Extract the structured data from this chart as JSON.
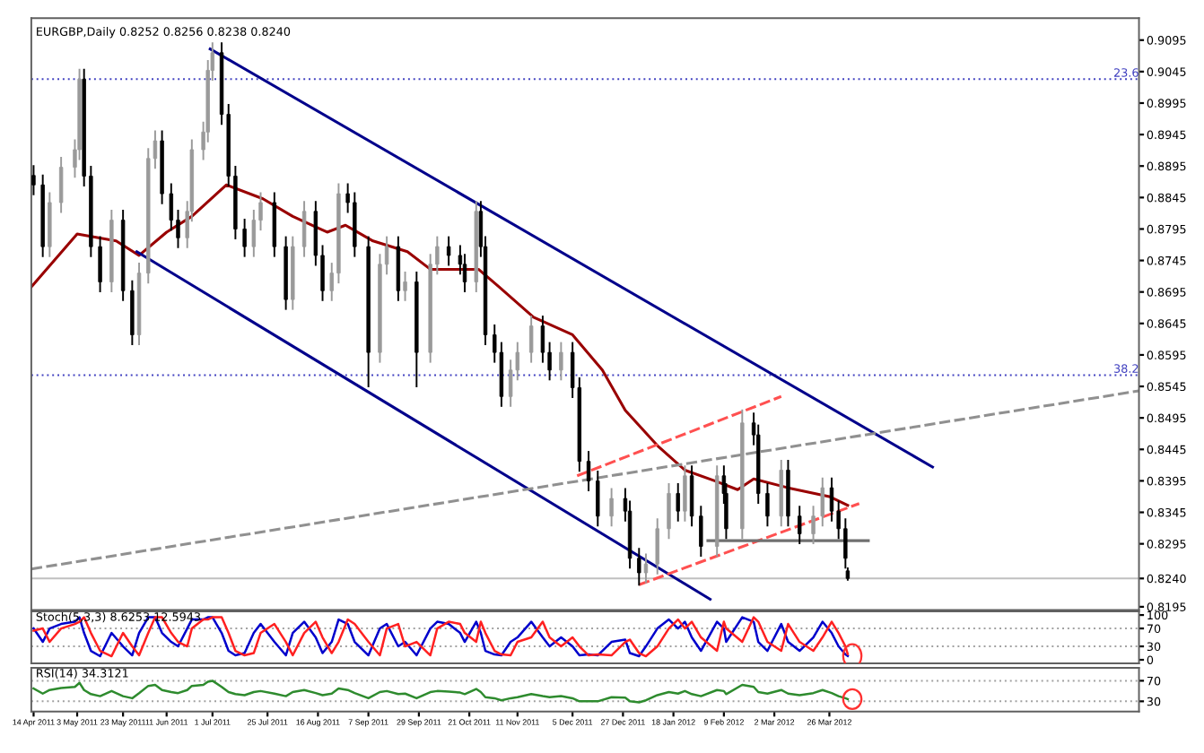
{
  "chart_data": [
    {
      "type": "candlestick",
      "title": "EURGBP,Daily 0.8252 0.8256 0.8238 0.8240",
      "x": [
        "2011-04-14",
        "2011-04-18",
        "2011-04-21",
        "2011-04-26",
        "2011-05-02",
        "2011-05-04",
        "2011-05-06",
        "2011-05-09",
        "2011-05-13",
        "2011-05-18",
        "2011-05-23",
        "2011-05-27",
        "2011-05-30",
        "2011-06-03",
        "2011-06-06",
        "2011-06-09",
        "2011-06-13",
        "2011-06-16",
        "2011-06-20",
        "2011-06-22",
        "2011-06-27",
        "2011-06-29",
        "2011-07-01",
        "2011-07-05",
        "2011-07-08",
        "2011-07-11",
        "2011-07-15",
        "2011-07-19",
        "2011-07-22",
        "2011-07-28",
        "2011-08-02",
        "2011-08-05",
        "2011-08-10",
        "2011-08-15",
        "2011-08-18",
        "2011-08-22",
        "2011-08-25",
        "2011-08-29",
        "2011-09-01",
        "2011-09-07",
        "2011-09-12",
        "2011-09-15",
        "2011-09-20",
        "2011-09-23",
        "2011-09-28",
        "2011-10-04",
        "2011-10-07",
        "2011-10-12",
        "2011-10-17",
        "2011-10-19",
        "2011-10-24",
        "2011-10-26",
        "2011-10-28",
        "2011-11-01",
        "2011-11-04",
        "2011-11-08",
        "2011-11-11",
        "2011-11-17",
        "2011-11-22",
        "2011-11-25",
        "2011-11-30",
        "2011-12-05",
        "2011-12-08",
        "2011-12-12",
        "2011-12-16",
        "2011-12-22",
        "2011-12-28",
        "2011-12-30",
        "2012-01-03",
        "2012-01-06",
        "2012-01-11",
        "2012-01-16",
        "2012-01-20",
        "2012-01-23",
        "2012-01-26",
        "2012-01-30",
        "2012-02-06",
        "2012-02-09",
        "2012-02-10",
        "2012-02-17",
        "2012-02-22",
        "2012-02-24",
        "2012-02-28",
        "2012-03-05",
        "2012-03-08",
        "2012-03-13",
        "2012-03-19",
        "2012-03-23",
        "2012-03-27",
        "2012-03-30",
        "2012-04-02",
        "2012-04-03"
      ],
      "ohlc": [
        [
          0.888,
          0.8895,
          0.885,
          0.8865
        ],
        [
          0.8865,
          0.888,
          0.8752,
          0.8767
        ],
        [
          0.8767,
          0.8852,
          0.8752,
          0.8837
        ],
        [
          0.8837,
          0.8908,
          0.8822,
          0.8893
        ],
        [
          0.8893,
          0.8936,
          0.8878,
          0.8921
        ],
        [
          0.8921,
          0.9048,
          0.8906,
          0.9033
        ],
        [
          0.9033,
          0.9048,
          0.8864,
          0.8879
        ],
        [
          0.8879,
          0.8894,
          0.8752,
          0.8767
        ],
        [
          0.8767,
          0.8782,
          0.8696,
          0.8711
        ],
        [
          0.8711,
          0.8824,
          0.8696,
          0.8809
        ],
        [
          0.8809,
          0.8824,
          0.8682,
          0.8697
        ],
        [
          0.8697,
          0.8712,
          0.8612,
          0.8627
        ],
        [
          0.8627,
          0.874,
          0.8612,
          0.8725
        ],
        [
          0.8725,
          0.8922,
          0.871,
          0.8907
        ],
        [
          0.8907,
          0.895,
          0.8892,
          0.8935
        ],
        [
          0.8935,
          0.895,
          0.8836,
          0.8851
        ],
        [
          0.8851,
          0.8866,
          0.8794,
          0.8809
        ],
        [
          0.8809,
          0.8824,
          0.8766,
          0.8781
        ],
        [
          0.8781,
          0.8838,
          0.8766,
          0.8823
        ],
        [
          0.8823,
          0.8936,
          0.8808,
          0.8921
        ],
        [
          0.8921,
          0.8964,
          0.8906,
          0.8949
        ],
        [
          0.8949,
          0.9062,
          0.8934,
          0.9047
        ],
        [
          0.9047,
          0.909,
          0.9032,
          0.9075
        ],
        [
          0.9075,
          0.909,
          0.8962,
          0.8977
        ],
        [
          0.8977,
          0.8992,
          0.8864,
          0.8879
        ],
        [
          0.8879,
          0.8894,
          0.878,
          0.8795
        ],
        [
          0.8795,
          0.881,
          0.8752,
          0.8767
        ],
        [
          0.8767,
          0.8824,
          0.8752,
          0.8809
        ],
        [
          0.8809,
          0.8852,
          0.8794,
          0.8837
        ],
        [
          0.8837,
          0.8852,
          0.8752,
          0.8767
        ],
        [
          0.8767,
          0.8782,
          0.8668,
          0.8683
        ],
        [
          0.8683,
          0.8782,
          0.8668,
          0.8767
        ],
        [
          0.8767,
          0.8838,
          0.8752,
          0.8823
        ],
        [
          0.8823,
          0.8838,
          0.8738,
          0.8753
        ],
        [
          0.8753,
          0.8768,
          0.8682,
          0.8697
        ],
        [
          0.8697,
          0.874,
          0.8682,
          0.8725
        ],
        [
          0.8725,
          0.8866,
          0.871,
          0.8851
        ],
        [
          0.8851,
          0.8866,
          0.8822,
          0.8837
        ],
        [
          0.8837,
          0.8852,
          0.8752,
          0.8767
        ],
        [
          0.8767,
          0.8782,
          0.8545,
          0.8599
        ],
        [
          0.8599,
          0.8754,
          0.8584,
          0.8739
        ],
        [
          0.8739,
          0.8782,
          0.8724,
          0.8767
        ],
        [
          0.8767,
          0.8782,
          0.8682,
          0.8697
        ],
        [
          0.8697,
          0.8726,
          0.8682,
          0.8711
        ],
        [
          0.8711,
          0.8726,
          0.8545,
          0.8599
        ],
        [
          0.8599,
          0.8754,
          0.8584,
          0.8739
        ],
        [
          0.8739,
          0.8782,
          0.8724,
          0.8767
        ],
        [
          0.8767,
          0.8782,
          0.8738,
          0.8753
        ],
        [
          0.8753,
          0.8768,
          0.8724,
          0.8739
        ],
        [
          0.8739,
          0.8754,
          0.8696,
          0.8711
        ],
        [
          0.8711,
          0.8838,
          0.8696,
          0.8823
        ],
        [
          0.8823,
          0.8838,
          0.8752,
          0.8767
        ],
        [
          0.8767,
          0.8782,
          0.8612,
          0.8627
        ],
        [
          0.8627,
          0.8642,
          0.8584,
          0.8599
        ],
        [
          0.8599,
          0.8614,
          0.8514,
          0.8529
        ],
        [
          0.8529,
          0.8586,
          0.8514,
          0.8571
        ],
        [
          0.8571,
          0.8614,
          0.8556,
          0.8599
        ],
        [
          0.8599,
          0.8656,
          0.8584,
          0.8641
        ],
        [
          0.8641,
          0.8656,
          0.8584,
          0.8599
        ],
        [
          0.8599,
          0.8614,
          0.8556,
          0.8571
        ],
        [
          0.8571,
          0.8614,
          0.8556,
          0.8599
        ],
        [
          0.8599,
          0.8614,
          0.8528,
          0.8543
        ],
        [
          0.8543,
          0.8558,
          0.8411,
          0.8426
        ],
        [
          0.8426,
          0.8441,
          0.838,
          0.8395
        ],
        [
          0.8395,
          0.841,
          0.8324,
          0.8339
        ],
        [
          0.8339,
          0.8382,
          0.8324,
          0.8367
        ],
        [
          0.8367,
          0.8382,
          0.8332,
          0.8347
        ],
        [
          0.8347,
          0.8362,
          0.8257,
          0.8272
        ],
        [
          0.8272,
          0.8287,
          0.823,
          0.8249
        ],
        [
          0.8249,
          0.8278,
          0.8234,
          0.8263
        ],
        [
          0.8263,
          0.8334,
          0.8248,
          0.8319
        ],
        [
          0.8319,
          0.839,
          0.8304,
          0.8375
        ],
        [
          0.8375,
          0.839,
          0.8332,
          0.8347
        ],
        [
          0.8347,
          0.8418,
          0.8332,
          0.8403
        ],
        [
          0.8403,
          0.8418,
          0.8324,
          0.8339
        ],
        [
          0.8339,
          0.8354,
          0.8276,
          0.8291
        ],
        [
          0.8291,
          0.8418,
          0.8276,
          0.8403
        ],
        [
          0.8403,
          0.8418,
          0.836,
          0.8375
        ],
        [
          0.8375,
          0.839,
          0.8304,
          0.8319
        ],
        [
          0.8319,
          0.8507,
          0.8304,
          0.8487
        ],
        [
          0.8487,
          0.8502,
          0.8453,
          0.8468
        ],
        [
          0.8468,
          0.8483,
          0.836,
          0.8375
        ],
        [
          0.8375,
          0.839,
          0.8324,
          0.8339
        ],
        [
          0.8339,
          0.8427,
          0.8324,
          0.8412
        ],
        [
          0.8412,
          0.8427,
          0.8324,
          0.8339
        ],
        [
          0.8339,
          0.8354,
          0.8296,
          0.8311
        ],
        [
          0.8311,
          0.8354,
          0.8296,
          0.8339
        ],
        [
          0.8339,
          0.8399,
          0.8324,
          0.8384
        ],
        [
          0.8384,
          0.8399,
          0.8332,
          0.8347
        ],
        [
          0.8347,
          0.8362,
          0.8304,
          0.8319
        ],
        [
          0.8319,
          0.8334,
          0.8257,
          0.8272
        ],
        [
          0.8252,
          0.8256,
          0.8238,
          0.824
        ]
      ],
      "colors": [
        "#000000",
        "#000000",
        "#9a9a9a",
        "#9a9a9a",
        "#9a9a9a",
        "#9a9a9a",
        "#000000",
        "#000000",
        "#000000",
        "#9a9a9a",
        "#000000",
        "#000000",
        "#9a9a9a",
        "#9a9a9a",
        "#9a9a9a",
        "#000000",
        "#000000",
        "#000000",
        "#9a9a9a",
        "#9a9a9a",
        "#9a9a9a",
        "#9a9a9a",
        "#9a9a9a",
        "#000000",
        "#000000",
        "#000000",
        "#000000",
        "#9a9a9a",
        "#9a9a9a",
        "#000000",
        "#000000",
        "#9a9a9a",
        "#9a9a9a",
        "#000000",
        "#000000",
        "#9a9a9a",
        "#9a9a9a",
        "#000000",
        "#000000",
        "#000000",
        "#9a9a9a",
        "#9a9a9a",
        "#000000",
        "#9a9a9a",
        "#000000",
        "#9a9a9a",
        "#9a9a9a",
        "#000000",
        "#000000",
        "#000000",
        "#9a9a9a",
        "#000000",
        "#000000",
        "#000000",
        "#000000",
        "#9a9a9a",
        "#9a9a9a",
        "#9a9a9a",
        "#000000",
        "#000000",
        "#9a9a9a",
        "#000000",
        "#000000",
        "#000000",
        "#000000",
        "#9a9a9a",
        "#000000",
        "#000000",
        "#000000",
        "#9a9a9a",
        "#9a9a9a",
        "#9a9a9a",
        "#000000",
        "#9a9a9a",
        "#000000",
        "#000000",
        "#9a9a9a",
        "#000000",
        "#000000",
        "#9a9a9a",
        "#000000",
        "#000000",
        "#000000",
        "#9a9a9a",
        "#000000",
        "#000000",
        "#9a9a9a",
        "#9a9a9a",
        "#000000",
        "#000000",
        "#000000",
        "#000000"
      ],
      "series": [
        {
          "type": "line",
          "color": "#990000",
          "line_style": "solid",
          "x": [
            "2011-04-13",
            "2011-05-03",
            "2011-05-20",
            "2011-05-30",
            "2011-06-11",
            "2011-06-22",
            "2011-07-07",
            "2011-07-23",
            "2011-08-05",
            "2011-08-20",
            "2011-08-28",
            "2011-09-09",
            "2011-09-24",
            "2011-10-04",
            "2011-10-25",
            "2011-11-03",
            "2011-11-18",
            "2011-12-05",
            "2011-12-18",
            "2011-12-28",
            "2012-01-11",
            "2012-01-23",
            "2012-02-05",
            "2012-02-15",
            "2012-02-22",
            "2012-03-08",
            "2012-03-26",
            "2012-04-03"
          ],
          "values": [
            0.8703,
            0.8787,
            0.8776,
            0.8753,
            0.879,
            0.8815,
            0.8865,
            0.8843,
            0.8815,
            0.879,
            0.8801,
            0.8776,
            0.8759,
            0.8731,
            0.8731,
            0.8703,
            0.8655,
            0.8627,
            0.8571,
            0.8507,
            0.8451,
            0.8412,
            0.8395,
            0.8381,
            0.8398,
            0.8384,
            0.837,
            0.8356
          ]
        },
        {
          "type": "line",
          "color": "#00008b",
          "line_style": "solid",
          "x": [
            "2011-06-30",
            "2012-05-10"
          ],
          "values": [
            0.9081,
            0.8417
          ]
        },
        {
          "type": "line",
          "color": "#00008b",
          "line_style": "solid",
          "x": [
            "2011-05-29",
            "2012-02-03"
          ],
          "values": [
            0.8759,
            0.8207
          ]
        },
        {
          "type": "line",
          "color": "#909090",
          "line_style": "dashed",
          "x": [
            "2011-04-13",
            "2012-08-08"
          ],
          "values": [
            0.8255,
            0.8538
          ]
        },
        {
          "type": "line",
          "color": "#ff5050",
          "line_style": "dashed",
          "x": [
            "2011-12-07",
            "2012-03-05"
          ],
          "values": [
            0.8403,
            0.8529
          ]
        },
        {
          "type": "line",
          "color": "#ff5050",
          "line_style": "dashed",
          "x": [
            "2012-01-03",
            "2012-04-08"
          ],
          "values": [
            0.823,
            0.8359
          ]
        },
        {
          "type": "line",
          "color": "#707070",
          "line_style": "solid",
          "x": [
            "2012-02-02",
            "2012-04-12"
          ],
          "values": [
            0.83,
            0.83
          ]
        }
      ],
      "annotations": [
        {
          "text": "23.6",
          "x": "2012-08-08",
          "y": 0.9033
        },
        {
          "text": "38.2",
          "x": "2012-08-08",
          "y": 0.8563
        }
      ],
      "ref_lines": [
        {
          "axis": "y",
          "value": 0.9033,
          "label": null,
          "color": "#4040c0",
          "line_style": "dotted"
        },
        {
          "axis": "y",
          "value": 0.8563,
          "label": null,
          "color": "#4040c0",
          "line_style": "dotted"
        },
        {
          "axis": "y",
          "value": 0.824,
          "label": null,
          "color": "#c0c0c0",
          "line_style": "solid"
        }
      ],
      "xlim": [
        "2011-04-13",
        "2012-08-08"
      ],
      "ylim": [
        0.819,
        0.913
      ],
      "yticks": [
        0.9095,
        0.9045,
        0.8995,
        0.8945,
        0.8895,
        0.8845,
        0.8795,
        0.8745,
        0.8695,
        0.8645,
        0.8595,
        0.8545,
        0.8495,
        0.8445,
        0.8395,
        0.8345,
        0.8295,
        {
          "value": 0.824,
          "label": "0.8240"
        },
        0.8195
      ],
      "tick_labels": "y"
    },
    {
      "type": "line",
      "title": "Stoch(5,3,3) 8.6253 12.5943",
      "x": [
        "2011-04-14",
        "2011-04-18",
        "2011-04-21",
        "2011-04-26",
        "2011-05-02",
        "2011-05-04",
        "2011-05-06",
        "2011-05-09",
        "2011-05-13",
        "2011-05-18",
        "2011-05-23",
        "2011-05-27",
        "2011-05-30",
        "2011-06-03",
        "2011-06-06",
        "2011-06-09",
        "2011-06-13",
        "2011-06-16",
        "2011-06-20",
        "2011-06-22",
        "2011-06-27",
        "2011-06-29",
        "2011-07-01",
        "2011-07-05",
        "2011-07-08",
        "2011-07-11",
        "2011-07-15",
        "2011-07-19",
        "2011-07-22",
        "2011-07-28",
        "2011-08-02",
        "2011-08-05",
        "2011-08-10",
        "2011-08-15",
        "2011-08-18",
        "2011-08-22",
        "2011-08-25",
        "2011-08-29",
        "2011-09-01",
        "2011-09-07",
        "2011-09-12",
        "2011-09-15",
        "2011-09-20",
        "2011-09-23",
        "2011-09-28",
        "2011-10-04",
        "2011-10-07",
        "2011-10-12",
        "2011-10-17",
        "2011-10-19",
        "2011-10-24",
        "2011-10-26",
        "2011-10-28",
        "2011-11-01",
        "2011-11-04",
        "2011-11-08",
        "2011-11-11",
        "2011-11-17",
        "2011-11-22",
        "2011-11-25",
        "2011-11-30",
        "2011-12-05",
        "2011-12-08",
        "2011-12-12",
        "2011-12-16",
        "2011-12-22",
        "2011-12-28",
        "2011-12-30",
        "2012-01-03",
        "2012-01-06",
        "2012-01-11",
        "2012-01-16",
        "2012-01-20",
        "2012-01-23",
        "2012-01-26",
        "2012-01-30",
        "2012-02-06",
        "2012-02-09",
        "2012-02-10",
        "2012-02-17",
        "2012-02-22",
        "2012-02-24",
        "2012-02-28",
        "2012-03-05",
        "2012-03-08",
        "2012-03-13",
        "2012-03-19",
        "2012-03-23",
        "2012-03-27",
        "2012-03-30",
        "2012-04-02",
        "2012-04-03"
      ],
      "series": [
        {
          "color": "#0000cc",
          "values": [
            70,
            40,
            70,
            80,
            85,
            95,
            60,
            20,
            8,
            60,
            30,
            10,
            60,
            95,
            95,
            60,
            40,
            30,
            70,
            90,
            90,
            95,
            95,
            60,
            20,
            10,
            15,
            60,
            80,
            40,
            10,
            60,
            85,
            50,
            15,
            40,
            90,
            80,
            40,
            10,
            70,
            80,
            30,
            40,
            10,
            70,
            85,
            80,
            60,
            40,
            85,
            60,
            20,
            12,
            10,
            40,
            50,
            85,
            50,
            30,
            50,
            30,
            10,
            12,
            10,
            40,
            45,
            15,
            8,
            30,
            70,
            90,
            70,
            85,
            50,
            20,
            85,
            70,
            40,
            95,
            85,
            40,
            20,
            80,
            40,
            20,
            50,
            85,
            60,
            30,
            12,
            8.6
          ]
        },
        {
          "color": "#ff2020",
          "values": [
            65,
            70,
            40,
            70,
            80,
            85,
            95,
            60,
            20,
            8,
            60,
            30,
            10,
            60,
            95,
            95,
            60,
            40,
            30,
            70,
            90,
            90,
            95,
            95,
            60,
            20,
            10,
            15,
            60,
            80,
            40,
            10,
            60,
            85,
            50,
            15,
            40,
            90,
            80,
            40,
            10,
            70,
            80,
            30,
            40,
            10,
            70,
            85,
            80,
            60,
            40,
            85,
            60,
            20,
            12,
            10,
            40,
            50,
            85,
            50,
            30,
            50,
            30,
            10,
            12,
            10,
            40,
            45,
            15,
            8,
            30,
            70,
            90,
            70,
            85,
            50,
            20,
            85,
            70,
            40,
            95,
            85,
            40,
            20,
            80,
            40,
            20,
            50,
            85,
            60,
            30,
            12.6
          ]
        }
      ],
      "ref_lines": [
        {
          "axis": "y",
          "value": 70,
          "label": null,
          "color": "#a0a0a0",
          "line_style": "dotted"
        },
        {
          "axis": "y",
          "value": 30,
          "label": null,
          "color": "#a0a0a0",
          "line_style": "dotted"
        }
      ],
      "xlim": [
        "2011-04-13",
        "2012-08-08"
      ],
      "ylim": [
        -8,
        108
      ],
      "yticks": [
        100,
        70,
        30,
        0
      ],
      "tick_labels": "y"
    },
    {
      "type": "line",
      "title": "RSI(14) 34.3121",
      "x": [
        "2011-04-14",
        "2011-04-18",
        "2011-04-21",
        "2011-04-26",
        "2011-05-02",
        "2011-05-04",
        "2011-05-06",
        "2011-05-09",
        "2011-05-13",
        "2011-05-18",
        "2011-05-23",
        "2011-05-27",
        "2011-05-30",
        "2011-06-03",
        "2011-06-06",
        "2011-06-09",
        "2011-06-13",
        "2011-06-16",
        "2011-06-20",
        "2011-06-22",
        "2011-06-27",
        "2011-06-29",
        "2011-07-01",
        "2011-07-05",
        "2011-07-08",
        "2011-07-11",
        "2011-07-15",
        "2011-07-19",
        "2011-07-22",
        "2011-07-28",
        "2011-08-02",
        "2011-08-05",
        "2011-08-10",
        "2011-08-15",
        "2011-08-18",
        "2011-08-22",
        "2011-08-25",
        "2011-08-29",
        "2011-09-01",
        "2011-09-07",
        "2011-09-12",
        "2011-09-15",
        "2011-09-20",
        "2011-09-23",
        "2011-09-28",
        "2011-10-04",
        "2011-10-07",
        "2011-10-12",
        "2011-10-17",
        "2011-10-19",
        "2011-10-24",
        "2011-10-26",
        "2011-10-28",
        "2011-11-01",
        "2011-11-04",
        "2011-11-08",
        "2011-11-11",
        "2011-11-17",
        "2011-11-22",
        "2011-11-25",
        "2011-11-30",
        "2011-12-05",
        "2011-12-08",
        "2011-12-12",
        "2011-12-16",
        "2011-12-22",
        "2011-12-28",
        "2011-12-30",
        "2012-01-03",
        "2012-01-06",
        "2012-01-11",
        "2012-01-16",
        "2012-01-20",
        "2012-01-23",
        "2012-01-26",
        "2012-01-30",
        "2012-02-06",
        "2012-02-09",
        "2012-02-10",
        "2012-02-17",
        "2012-02-22",
        "2012-02-24",
        "2012-02-28",
        "2012-03-05",
        "2012-03-08",
        "2012-03-13",
        "2012-03-19",
        "2012-03-23",
        "2012-03-27",
        "2012-03-30",
        "2012-04-02",
        "2012-04-03"
      ],
      "series": [
        {
          "color": "#2e8b2e",
          "values": [
            55,
            45,
            52,
            56,
            58,
            66,
            52,
            44,
            40,
            50,
            40,
            36,
            46,
            60,
            62,
            52,
            48,
            46,
            52,
            60,
            62,
            68,
            70,
            58,
            48,
            44,
            42,
            48,
            50,
            45,
            40,
            48,
            52,
            46,
            42,
            45,
            55,
            52,
            46,
            36,
            48,
            50,
            44,
            45,
            36,
            48,
            50,
            49,
            47,
            44,
            54,
            48,
            38,
            36,
            32,
            36,
            38,
            44,
            40,
            38,
            40,
            36,
            30,
            30,
            30,
            38,
            37,
            30,
            28,
            32,
            42,
            48,
            45,
            50,
            44,
            40,
            52,
            50,
            44,
            62,
            58,
            48,
            45,
            52,
            45,
            42,
            46,
            52,
            46,
            40,
            36,
            34.3
          ]
        }
      ],
      "ref_lines": [
        {
          "axis": "y",
          "value": 70,
          "label": null,
          "color": "#a0a0a0",
          "line_style": "dotted"
        },
        {
          "axis": "y",
          "value": 30,
          "label": null,
          "color": "#a0a0a0",
          "line_style": "dotted"
        }
      ],
      "xlim": [
        "2011-04-13",
        "2012-08-08"
      ],
      "ylim": [
        10,
        95
      ],
      "yticks": [
        70,
        30
      ],
      "xticks": [
        {
          "value": "2011-04-14",
          "label": "14 Apr 2011"
        },
        {
          "value": "2011-05-03",
          "label": "3 May 2011"
        },
        {
          "value": "2011-05-23",
          "label": "23 May 2011"
        },
        {
          "value": "2011-06-11",
          "label": "11 Jun 2011"
        },
        {
          "value": "2011-07-01",
          "label": "1 Jul 2011"
        },
        {
          "value": "2011-07-25",
          "label": "25 Jul 2011"
        },
        {
          "value": "2011-08-16",
          "label": "16 Aug 2011"
        },
        {
          "value": "2011-09-07",
          "label": "7 Sep 2011"
        },
        {
          "value": "2011-09-29",
          "label": "29 Sep 2011"
        },
        {
          "value": "2011-10-21",
          "label": "21 Oct 2011"
        },
        {
          "value": "2011-11-11",
          "label": "11 Nov 2011"
        },
        {
          "value": "2011-12-05",
          "label": "5 Dec 2011"
        },
        {
          "value": "2011-12-27",
          "label": "27 Dec 2011"
        },
        {
          "value": "2012-01-18",
          "label": "18 Jan 2012"
        },
        {
          "value": "2012-02-09",
          "label": "9 Feb 2012"
        },
        {
          "value": "2012-03-02",
          "label": "2 Mar 2012"
        },
        {
          "value": "2012-03-26",
          "label": "26 Mar 2012"
        }
      ]
    }
  ]
}
